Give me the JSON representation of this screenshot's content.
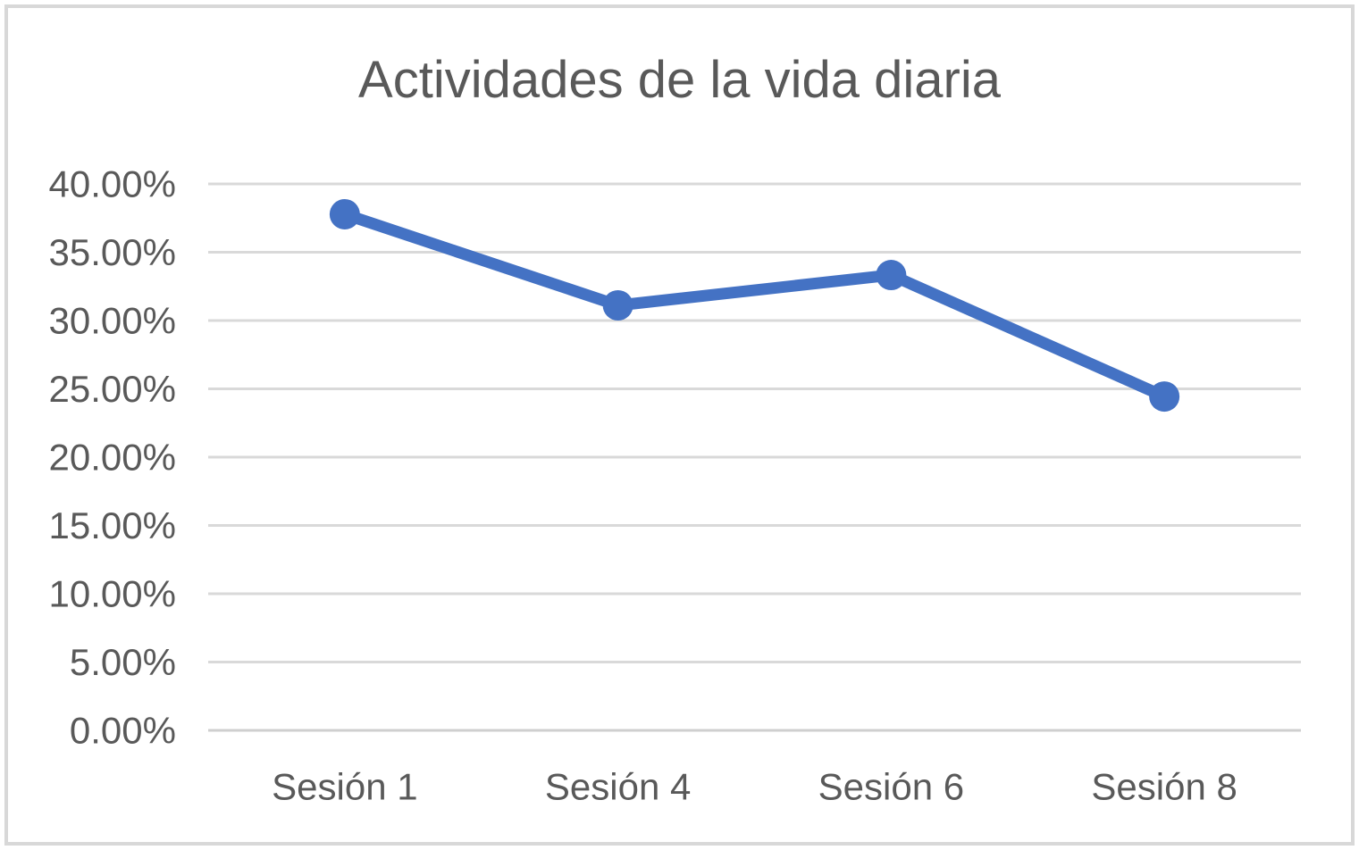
{
  "frame": {
    "border_color": "#D8D8D8",
    "background": "#FFFFFF"
  },
  "chart_data": {
    "type": "line",
    "title": "Actividades de la vida diaria",
    "categories": [
      "Sesión 1",
      "Sesión 4",
      "Sesión 6",
      "Sesión 8"
    ],
    "values": [
      37.78,
      31.11,
      33.33,
      24.44
    ],
    "value_unit": "%",
    "ylim": [
      0,
      40
    ],
    "ytick_step": 5,
    "ytick_labels": [
      "40.00%",
      "35.00%",
      "30.00%",
      "25.00%",
      "20.00%",
      "15.00%",
      "10.00%",
      "5.00%",
      "0.00%"
    ],
    "xlabel": "",
    "ylabel": "",
    "grid": true,
    "legend": "none",
    "marker": "circle",
    "colors": {
      "line": "#4472C4",
      "marker": "#4472C4",
      "gridline": "#D9D9D9",
      "axis_line": "#CFCFCF",
      "text": "#595959",
      "title": "#595959"
    }
  }
}
